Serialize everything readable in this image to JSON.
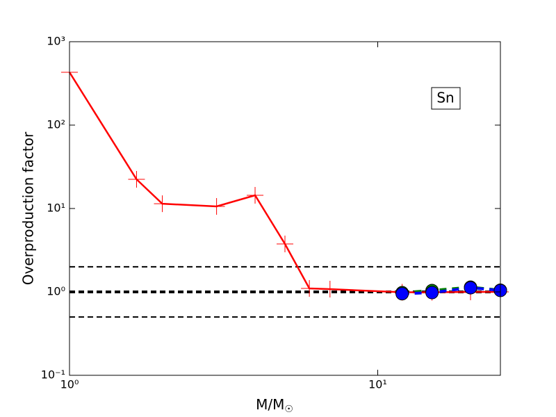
{
  "chart_data": {
    "type": "line",
    "x_label": "M/M",
    "x_label_subscript": "☉",
    "y_label": "Overproduction factor",
    "annotation": "Sn",
    "log_x": true,
    "log_y": true,
    "xlim": [
      1,
      25
    ],
    "ylim": [
      0.1,
      1000
    ],
    "xticks": [
      {
        "value": 1,
        "label": "10⁰"
      },
      {
        "value": 10,
        "label": "10¹"
      }
    ],
    "yticks": [
      {
        "value": 0.1,
        "label": "10⁻¹"
      },
      {
        "value": 1,
        "label": "10⁰"
      },
      {
        "value": 10,
        "label": "10¹"
      },
      {
        "value": 100,
        "label": "10²"
      },
      {
        "value": 1000,
        "label": "10³"
      }
    ],
    "reference_lines": [
      2,
      1,
      0.5
    ],
    "series": [
      {
        "color": "#ff0000",
        "marker": "plus",
        "dash": false,
        "x": [
          1,
          1.65,
          2,
          3,
          4,
          5,
          6,
          7,
          12,
          15,
          20,
          25
        ],
        "values": [
          430,
          22.4,
          11.4,
          10.6,
          14.4,
          3.76,
          1.1,
          1.08,
          0.99,
          0.99,
          1.0,
          1.0
        ]
      },
      {
        "color": "#008000",
        "marker": "circle",
        "dash": true,
        "x": [
          12,
          15,
          20,
          25
        ],
        "values": [
          0.98,
          1.04,
          1.14,
          1.05
        ]
      },
      {
        "color": "#0000ff",
        "marker": "circle",
        "dash": true,
        "x": [
          12,
          15,
          20,
          25
        ],
        "values": [
          0.95,
          0.98,
          1.12,
          1.04
        ]
      }
    ]
  }
}
